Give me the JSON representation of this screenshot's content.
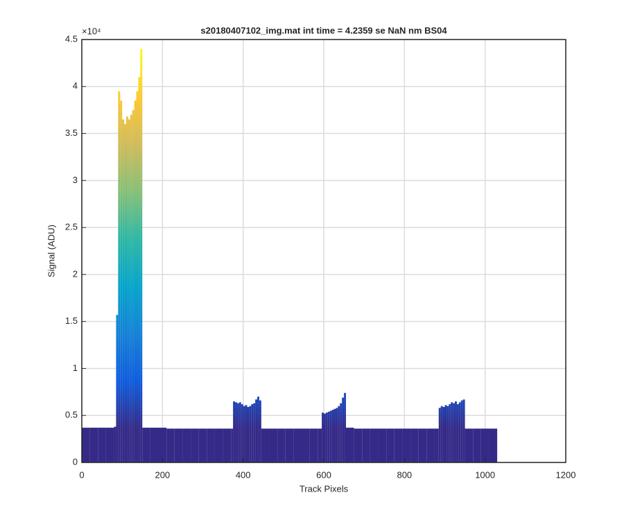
{
  "chart_data": {
    "type": "bar",
    "title": "s20180407102_img.mat int time = 4.2359 se  NaN nm BS04",
    "x_label": "Track Pixels",
    "y_label": "Signal (ADU)",
    "y_scale_label": "×10⁴",
    "x": [
      0,
      20,
      40,
      60,
      80,
      85,
      90,
      95,
      100,
      105,
      110,
      115,
      120,
      125,
      130,
      135,
      140,
      145,
      150,
      170,
      190,
      210,
      230,
      250,
      270,
      290,
      310,
      330,
      350,
      370,
      375,
      380,
      385,
      390,
      395,
      400,
      405,
      410,
      415,
      420,
      425,
      430,
      435,
      440,
      445,
      465,
      485,
      505,
      525,
      545,
      565,
      585,
      595,
      600,
      605,
      610,
      615,
      620,
      625,
      630,
      635,
      640,
      645,
      650,
      655,
      675,
      695,
      715,
      735,
      755,
      775,
      795,
      815,
      835,
      855,
      875,
      885,
      890,
      895,
      900,
      905,
      910,
      915,
      920,
      925,
      930,
      935,
      940,
      945,
      950,
      970,
      990,
      1010
    ],
    "values": [
      3700,
      3700,
      3700,
      3700,
      3800,
      15700,
      39500,
      38500,
      36500,
      36000,
      36800,
      36500,
      37000,
      37500,
      38500,
      39500,
      41000,
      44000,
      3700,
      3700,
      3700,
      3600,
      3600,
      3600,
      3600,
      3600,
      3600,
      3600,
      3600,
      3600,
      6500,
      6400,
      6300,
      6400,
      6200,
      6000,
      6100,
      5900,
      6000,
      6200,
      6300,
      6700,
      7000,
      6600,
      3600,
      3600,
      3600,
      3600,
      3600,
      3600,
      3600,
      3600,
      5300,
      5200,
      5300,
      5400,
      5500,
      5600,
      5700,
      5800,
      6000,
      6300,
      6900,
      7400,
      3700,
      3600,
      3600,
      3600,
      3600,
      3600,
      3600,
      3600,
      3600,
      3600,
      3600,
      3600,
      5800,
      6000,
      5900,
      6100,
      6000,
      6200,
      6400,
      6300,
      6500,
      6200,
      6400,
      6600,
      6700,
      3600,
      3600,
      3600,
      3600
    ],
    "colormap": [
      "#352a87",
      "#0f5cdd",
      "#1481d6",
      "#06a4ca",
      "#2eb7a4",
      "#87bf77",
      "#d1bb59",
      "#fec832",
      "#f9fb0e"
    ],
    "xlim": [
      0,
      1200
    ],
    "xticks": [
      0,
      200,
      400,
      600,
      800,
      1000,
      1200
    ],
    "ylim": [
      0,
      45000
    ],
    "yticks": [
      {
        "value": 0,
        "label": "0"
      },
      {
        "value": 5000,
        "label": "0.5"
      },
      {
        "value": 10000,
        "label": "1"
      },
      {
        "value": 15000,
        "label": "1.5"
      },
      {
        "value": 20000,
        "label": "2"
      },
      {
        "value": 25000,
        "label": "2.5"
      },
      {
        "value": 30000,
        "label": "3"
      },
      {
        "value": 35000,
        "label": "3.5"
      },
      {
        "value": 40000,
        "label": "4"
      },
      {
        "value": 45000,
        "label": "4.5"
      }
    ],
    "grid": true
  }
}
